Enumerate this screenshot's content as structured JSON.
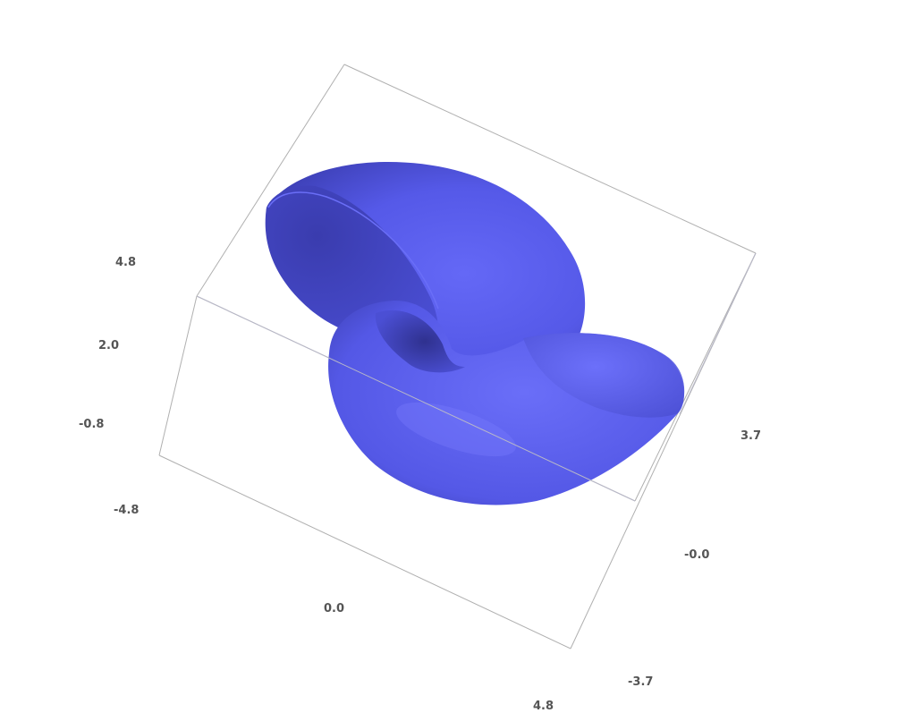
{
  "chart_data": {
    "type": "surface3d",
    "surface": "shell-shaped tube (seashell / horn surface)",
    "surface_color": "#5a5ef2",
    "box": true,
    "grid": false,
    "axes": {
      "z": {
        "ticks": [
          "4.8",
          "2.0",
          "-0.8",
          "-4.8"
        ]
      },
      "y": {
        "ticks": [
          "3.7",
          "-0.0",
          "-3.7"
        ]
      },
      "x": {
        "ticks": [
          "0.0",
          "4.8"
        ]
      }
    }
  }
}
